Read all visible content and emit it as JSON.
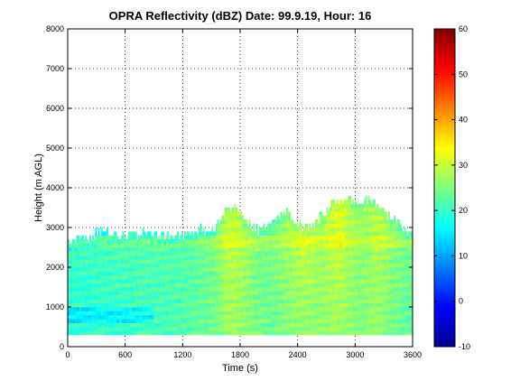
{
  "chart_data": {
    "type": "heatmap",
    "title": "OPRA Reflectivity (dBZ)  Date: 99.9.19, Hour: 16",
    "xlabel": "Time (s)",
    "ylabel": "Height (m AGL)",
    "xlim": [
      0,
      3600
    ],
    "ylim": [
      0,
      8000
    ],
    "xticks": [
      "0",
      "600",
      "1200",
      "1800",
      "2400",
      "3000",
      "3600"
    ],
    "yticks": [
      "0",
      "1000",
      "2000",
      "3000",
      "4000",
      "5000",
      "6000",
      "7000",
      "8000"
    ],
    "grid": true,
    "colorbar": {
      "range": [
        -10,
        60
      ],
      "ticks": [
        "-10",
        "0",
        "10",
        "20",
        "30",
        "40",
        "50",
        "60"
      ],
      "colormap": "jet"
    },
    "echo_field": {
      "base_height_m": 300,
      "time_s": [
        0,
        200,
        400,
        600,
        800,
        1000,
        1200,
        1400,
        1550,
        1650,
        1750,
        1850,
        2000,
        2150,
        2250,
        2350,
        2450,
        2550,
        2650,
        2750,
        2850,
        2950,
        3050,
        3150,
        3250,
        3350,
        3450,
        3550
      ],
      "top_height_m": [
        2650,
        2750,
        2950,
        2750,
        2900,
        2850,
        2800,
        2950,
        3000,
        3400,
        3650,
        3100,
        2950,
        3100,
        3450,
        3250,
        3050,
        3000,
        3300,
        3550,
        3750,
        3700,
        3600,
        3750,
        3600,
        3300,
        3100,
        2850
      ],
      "mean_dbz_low": [
        19,
        19,
        20,
        20,
        21,
        21,
        22,
        23,
        24,
        27,
        27,
        26,
        24,
        24,
        25,
        26,
        26,
        26,
        26,
        27,
        27,
        26,
        25,
        26,
        26,
        25,
        24,
        23
      ],
      "mean_dbz_upper": [
        21,
        21,
        21,
        22,
        22,
        22,
        22,
        23,
        25,
        30,
        31,
        28,
        25,
        25,
        27,
        29,
        31,
        30,
        28,
        31,
        33,
        29,
        27,
        28,
        30,
        28,
        26,
        25
      ]
    }
  }
}
